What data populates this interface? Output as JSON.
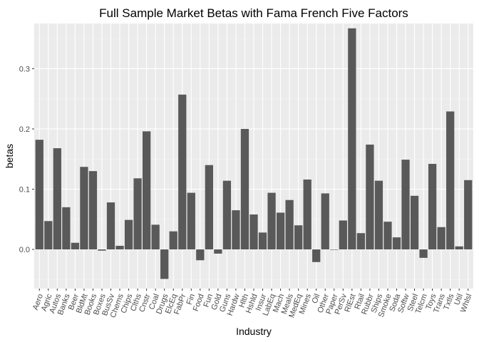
{
  "chart_data": {
    "type": "bar",
    "title": "Full Sample Market Betas with Fama French Five Factors",
    "xlabel": "Industry",
    "ylabel": "betas",
    "ylim": [
      -0.065,
      0.375
    ],
    "yticks": [
      0.0,
      0.1,
      0.2,
      0.3
    ],
    "ytick_labels": [
      "0.0",
      "0.1",
      "0.2",
      "0.3"
    ],
    "grid": true,
    "legend": "none",
    "colors": {
      "bar": "#595959",
      "panel": "#ebebeb",
      "grid_major": "#ffffff",
      "grid_minor": "#f4f4f4"
    },
    "categories": [
      "Aero",
      "Agric",
      "Autos",
      "Banks",
      "Beer",
      "BldMt",
      "Books",
      "Boxes",
      "BusSv",
      "Chems",
      "Chips",
      "Clths",
      "Cnstr",
      "Coal",
      "Drugs",
      "ElcEq",
      "FabPr",
      "Fin",
      "Food",
      "Fun",
      "Gold",
      "Guns",
      "Hardw",
      "Hlth",
      "Hshld",
      "Insur",
      "LabEq",
      "Mach",
      "Meals",
      "MedEq",
      "Mines",
      "Oil",
      "Other",
      "Paper",
      "PerSv",
      "RlEst",
      "Rtail",
      "Rubbr",
      "Ships",
      "Smoke",
      "Soda",
      "Softw",
      "Steel",
      "Telcm",
      "Toys",
      "Trans",
      "Txtls",
      "Util",
      "Whlsl"
    ],
    "values": [
      0.182,
      0.047,
      0.168,
      0.07,
      0.011,
      0.137,
      0.13,
      -0.002,
      0.078,
      0.006,
      0.049,
      0.118,
      0.196,
      0.041,
      -0.049,
      0.03,
      0.257,
      0.094,
      -0.018,
      0.14,
      -0.007,
      0.114,
      0.065,
      0.2,
      0.058,
      0.028,
      0.094,
      0.061,
      0.082,
      0.04,
      0.116,
      -0.021,
      0.093,
      0.0,
      0.048,
      0.367,
      0.027,
      0.174,
      0.114,
      0.046,
      0.02,
      0.149,
      0.089,
      -0.014,
      0.142,
      0.037,
      0.229,
      0.005,
      0.115
    ]
  }
}
